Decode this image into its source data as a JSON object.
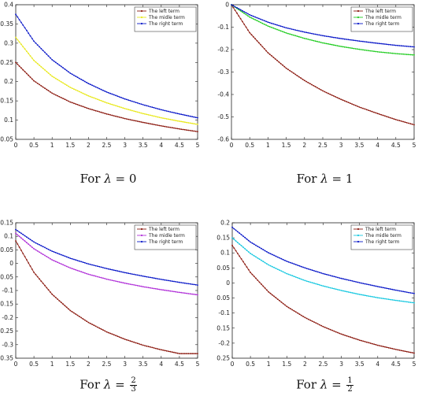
{
  "chart_data": [
    {
      "type": "line",
      "caption": {
        "prefix": "For ",
        "symbol": "λ",
        "equals": " = ",
        "value": "0"
      },
      "xlim": [
        0,
        5
      ],
      "ylim": [
        0.05,
        0.4
      ],
      "xticks": [
        "0",
        "0.5",
        "1",
        "1.5",
        "2",
        "2.5",
        "3",
        "3.5",
        "4",
        "4.5",
        "5"
      ],
      "yticks": [
        "0.4",
        "0.35",
        "0.3",
        "0.25",
        "0.2",
        "0.15",
        "0.1",
        "0.05"
      ],
      "legend_position": "top-right",
      "series": [
        {
          "name": "The left term",
          "color": "#8b1a10",
          "values": [
            [
              0,
              0.25
            ],
            [
              0.5,
              0.202
            ],
            [
              1,
              0.17
            ],
            [
              1.5,
              0.147
            ],
            [
              2,
              0.13
            ],
            [
              2.5,
              0.116
            ],
            [
              3,
              0.104
            ],
            [
              3.5,
              0.094
            ],
            [
              4,
              0.085
            ],
            [
              4.5,
              0.077
            ],
            [
              5,
              0.07
            ]
          ]
        },
        {
          "name": "The midle term",
          "color": "#e8e81a",
          "values": [
            [
              0,
              0.315
            ],
            [
              0.5,
              0.255
            ],
            [
              1,
              0.214
            ],
            [
              1.5,
              0.185
            ],
            [
              2,
              0.163
            ],
            [
              2.5,
              0.145
            ],
            [
              3,
              0.13
            ],
            [
              3.5,
              0.117
            ],
            [
              4,
              0.106
            ],
            [
              4.5,
              0.097
            ],
            [
              5,
              0.089
            ]
          ]
        },
        {
          "name": "The right term",
          "color": "#0a18c8",
          "values": [
            [
              0,
              0.375
            ],
            [
              0.5,
              0.305
            ],
            [
              1,
              0.257
            ],
            [
              1.5,
              0.222
            ],
            [
              2,
              0.195
            ],
            [
              2.5,
              0.173
            ],
            [
              3,
              0.155
            ],
            [
              3.5,
              0.14
            ],
            [
              4,
              0.127
            ],
            [
              4.5,
              0.116
            ],
            [
              5,
              0.106
            ]
          ]
        }
      ]
    },
    {
      "type": "line",
      "caption": {
        "prefix": "For ",
        "symbol": "λ",
        "equals": " = ",
        "value": "1"
      },
      "xlim": [
        0,
        5
      ],
      "ylim": [
        -0.6,
        0
      ],
      "xticks": [
        "0",
        "0.5",
        "1",
        "1.5",
        "2",
        "2.5",
        "3",
        "3.5",
        "4",
        "4.5",
        "5"
      ],
      "yticks": [
        "0",
        "-0.1",
        "-0.2",
        "-0.3",
        "-0.4",
        "-0.5",
        "-0.6"
      ],
      "legend_position": "top-right",
      "series": [
        {
          "name": "The left term",
          "color": "#8b1a10",
          "values": [
            [
              0,
              0
            ],
            [
              0.5,
              -0.125
            ],
            [
              1,
              -0.214
            ],
            [
              1.5,
              -0.283
            ],
            [
              2,
              -0.338
            ],
            [
              2.5,
              -0.384
            ],
            [
              3,
              -0.422
            ],
            [
              3.5,
              -0.456
            ],
            [
              4,
              -0.485
            ],
            [
              4.5,
              -0.512
            ],
            [
              5,
              -0.535
            ]
          ]
        },
        {
          "name": "The midle term",
          "color": "#22cc22",
          "values": [
            [
              0,
              0
            ],
            [
              0.5,
              -0.055
            ],
            [
              1,
              -0.095
            ],
            [
              1.5,
              -0.126
            ],
            [
              2,
              -0.15
            ],
            [
              2.5,
              -0.17
            ],
            [
              3,
              -0.186
            ],
            [
              3.5,
              -0.199
            ],
            [
              4,
              -0.21
            ],
            [
              4.5,
              -0.218
            ],
            [
              5,
              -0.224
            ]
          ]
        },
        {
          "name": "The right term",
          "color": "#0a18c8",
          "values": [
            [
              0,
              0
            ],
            [
              0.5,
              -0.045
            ],
            [
              1,
              -0.078
            ],
            [
              1.5,
              -0.103
            ],
            [
              2,
              -0.122
            ],
            [
              2.5,
              -0.138
            ],
            [
              3,
              -0.151
            ],
            [
              3.5,
              -0.162
            ],
            [
              4,
              -0.172
            ],
            [
              4.5,
              -0.181
            ],
            [
              5,
              -0.188
            ]
          ]
        }
      ]
    },
    {
      "type": "line",
      "caption": {
        "prefix": "For ",
        "symbol": "λ",
        "equals": " = ",
        "numerator": "2",
        "denominator": "3"
      },
      "xlim": [
        0,
        5
      ],
      "ylim": [
        -0.35,
        0.15
      ],
      "xticks": [
        "0",
        "0.5",
        "1",
        "1.5",
        "2",
        "2.5",
        "3",
        "3.5",
        "4",
        "4.5",
        "5"
      ],
      "yticks": [
        "0.15",
        "0.1",
        "0.05",
        "0",
        "-0.05",
        "-0.1",
        "-0.15",
        "-0.2",
        "-0.25",
        "-0.3",
        "-0.35"
      ],
      "legend_position": "top-right",
      "series": [
        {
          "name": "The left term",
          "color": "#8b1a10",
          "values": [
            [
              0,
              0.083
            ],
            [
              0.5,
              -0.033
            ],
            [
              1,
              -0.114
            ],
            [
              1.5,
              -0.174
            ],
            [
              2,
              -0.218
            ],
            [
              2.5,
              -0.253
            ],
            [
              3,
              -0.28
            ],
            [
              3.5,
              -0.302
            ],
            [
              4,
              -0.319
            ],
            [
              4.5,
              -0.333
            ],
            [
              5,
              -0.333
            ]
          ]
        },
        {
          "name": "The midle term",
          "color": "#b030d8",
          "values": [
            [
              0,
              0.111
            ],
            [
              0.5,
              0.054
            ],
            [
              1,
              0.013
            ],
            [
              1.5,
              -0.017
            ],
            [
              2,
              -0.04
            ],
            [
              2.5,
              -0.058
            ],
            [
              3,
              -0.073
            ],
            [
              3.5,
              -0.086
            ],
            [
              4,
              -0.097
            ],
            [
              4.5,
              -0.107
            ],
            [
              5,
              -0.116
            ]
          ]
        },
        {
          "name": "The right term",
          "color": "#0a18c8",
          "values": [
            [
              0,
              0.125
            ],
            [
              0.5,
              0.079
            ],
            [
              1,
              0.045
            ],
            [
              1.5,
              0.019
            ],
            [
              2,
              -0.002
            ],
            [
              2.5,
              -0.019
            ],
            [
              3,
              -0.034
            ],
            [
              3.5,
              -0.047
            ],
            [
              4,
              -0.059
            ],
            [
              4.5,
              -0.07
            ],
            [
              5,
              -0.08
            ]
          ]
        }
      ]
    },
    {
      "type": "line",
      "caption": {
        "prefix": "For ",
        "symbol": "λ",
        "equals": " = ",
        "numerator": "1",
        "denominator": "2"
      },
      "xlim": [
        0,
        5
      ],
      "ylim": [
        -0.25,
        0.2
      ],
      "xticks": [
        "0",
        "0.5",
        "1",
        "1.5",
        "2",
        "2.5",
        "3",
        "3.5",
        "4",
        "4.5",
        "5"
      ],
      "yticks": [
        "0.2",
        "0.15",
        "0.1",
        "0.05",
        "0",
        "-0.05",
        "-0.1",
        "-0.15",
        "-0.2",
        "-0.25"
      ],
      "legend_position": "top-right",
      "series": [
        {
          "name": "The left term",
          "color": "#8b1a10",
          "values": [
            [
              0,
              0.125
            ],
            [
              0.5,
              0.035
            ],
            [
              1,
              -0.03
            ],
            [
              1.5,
              -0.078
            ],
            [
              2,
              -0.115
            ],
            [
              2.5,
              -0.145
            ],
            [
              3,
              -0.17
            ],
            [
              3.5,
              -0.19
            ],
            [
              4,
              -0.207
            ],
            [
              4.5,
              -0.221
            ],
            [
              5,
              -0.233
            ]
          ]
        },
        {
          "name": "The midle term",
          "color": "#18c8e0",
          "values": [
            [
              0,
              0.15
            ],
            [
              0.5,
              0.098
            ],
            [
              1,
              0.06
            ],
            [
              1.5,
              0.031
            ],
            [
              2,
              0.008
            ],
            [
              2.5,
              -0.01
            ],
            [
              3,
              -0.025
            ],
            [
              3.5,
              -0.038
            ],
            [
              4,
              -0.049
            ],
            [
              4.5,
              -0.058
            ],
            [
              5,
              -0.066
            ]
          ]
        },
        {
          "name": "The right term",
          "color": "#0a18c8",
          "values": [
            [
              0,
              0.185
            ],
            [
              0.5,
              0.136
            ],
            [
              1,
              0.1
            ],
            [
              1.5,
              0.072
            ],
            [
              2,
              0.05
            ],
            [
              2.5,
              0.031
            ],
            [
              3,
              0.015
            ],
            [
              3.5,
              0.001
            ],
            [
              4,
              -0.012
            ],
            [
              4.5,
              -0.024
            ],
            [
              5,
              -0.035
            ]
          ]
        }
      ]
    }
  ]
}
